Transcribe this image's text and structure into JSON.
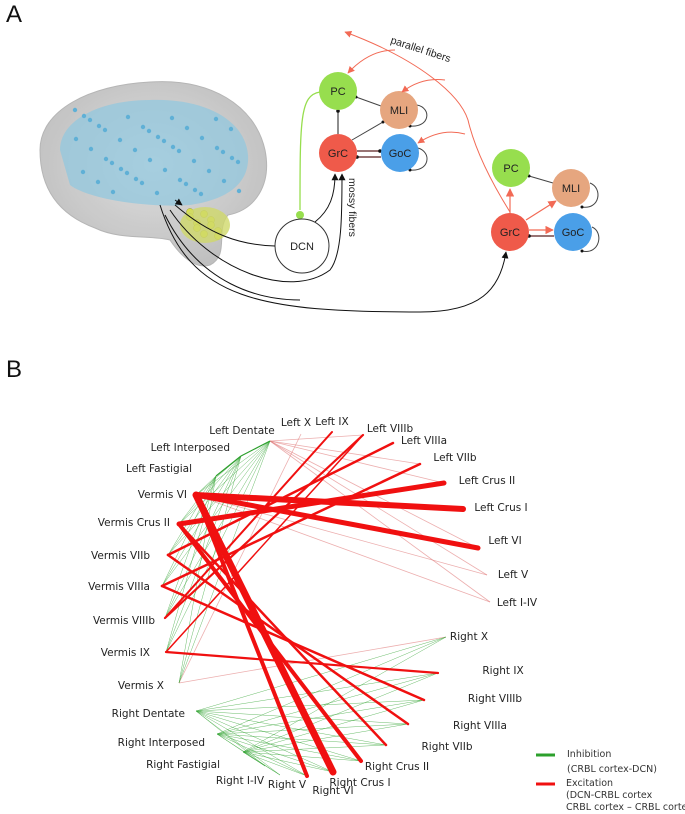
{
  "panels": {
    "a": "A",
    "b": "B"
  },
  "panel_a": {
    "circuit1": {
      "pc": "PC",
      "mli": "MLI",
      "grc": "GrC",
      "goc": "GoC"
    },
    "circuit2": {
      "pc": "PC",
      "mli": "MLI",
      "grc": "GrC",
      "goc": "GoC"
    },
    "dcn": "DCN",
    "parallel_fibers": "parallel fibers",
    "mossy_fibers": "mossy fibers",
    "colors": {
      "pc": "#97de4e",
      "mli": "#e6a67f",
      "grc": "#ef5a4a",
      "goc": "#4a9fe8",
      "pf": "#f26a55"
    }
  },
  "panel_b": {
    "nodes": [
      "Left Dentate",
      "Left X",
      "Left IX",
      "Left VIIIb",
      "Left VIIIa",
      "Left VIIb",
      "Left Crus II",
      "Left Crus I",
      "Left VI",
      "Left V",
      "Left I-IV",
      "Right X",
      "Right IX",
      "Right VIIIb",
      "Right VIIIa",
      "Right VIIb",
      "Right Crus II",
      "Right Crus I",
      "Right VI",
      "Right V",
      "Right I-IV",
      "Right Fastigial",
      "Right Interposed",
      "Right Dentate",
      "Vermis X",
      "Vermis IX",
      "Vermis VIIIb",
      "Vermis VIIIa",
      "Vermis VIIb",
      "Vermis Crus II",
      "Vermis VI",
      "Left Fastigial",
      "Left Interposed"
    ],
    "legend": {
      "inhibition": "Inhibition",
      "inhibition_sub": "(CRBL cortex-DCN)",
      "excitation": "Excitation",
      "excitation_sub1": "(DCN-CRBL cortex",
      "excitation_sub2": "CRBL cortex – CRBL cortex)"
    },
    "colors": {
      "inhibition": "#2ca02c",
      "excitation": "#f01010"
    },
    "excitation_edges": [
      [
        "Vermis VI",
        "Right Crus I",
        7
      ],
      [
        "Vermis VI",
        "Left Crus I",
        6
      ],
      [
        "Vermis VI",
        "Left VI",
        5
      ],
      [
        "Vermis VI",
        "Right VI",
        4
      ],
      [
        "Vermis Crus II",
        "Left Crus II",
        5
      ],
      [
        "Vermis Crus II",
        "Right Crus II",
        4
      ],
      [
        "Vermis Crus II",
        "Right VIIb",
        2.5
      ],
      [
        "Vermis VIIb",
        "Left VIIIa",
        2.5
      ],
      [
        "Vermis VIIb",
        "Right VIIIa",
        2.5
      ],
      [
        "Vermis VIIIa",
        "Left VIIb",
        2.5
      ],
      [
        "Vermis VIIIa",
        "Right VIIIb",
        2.5
      ],
      [
        "Vermis VIIIb",
        "Left VIIIb",
        2.2
      ],
      [
        "Vermis VIIIb",
        "Left IX",
        2
      ],
      [
        "Vermis IX",
        "Right IX",
        2.2
      ],
      [
        "Vermis IX",
        "Left VIIIb",
        1.5
      ]
    ],
    "weak_edges": [
      [
        "Vermis X",
        "Right X"
      ],
      [
        "Vermis X",
        "Left X"
      ],
      [
        "Left Dentate",
        "Left VIIIb"
      ],
      [
        "Left Dentate",
        "Left VIIb"
      ],
      [
        "Left Dentate",
        "Left Crus II"
      ],
      [
        "Left Dentate",
        "Left VI"
      ],
      [
        "Left Dentate",
        "Left V"
      ],
      [
        "Left Dentate",
        "Left I-IV"
      ],
      [
        "Vermis VI",
        "Left V"
      ],
      [
        "Vermis VI",
        "Left I-IV"
      ]
    ]
  }
}
